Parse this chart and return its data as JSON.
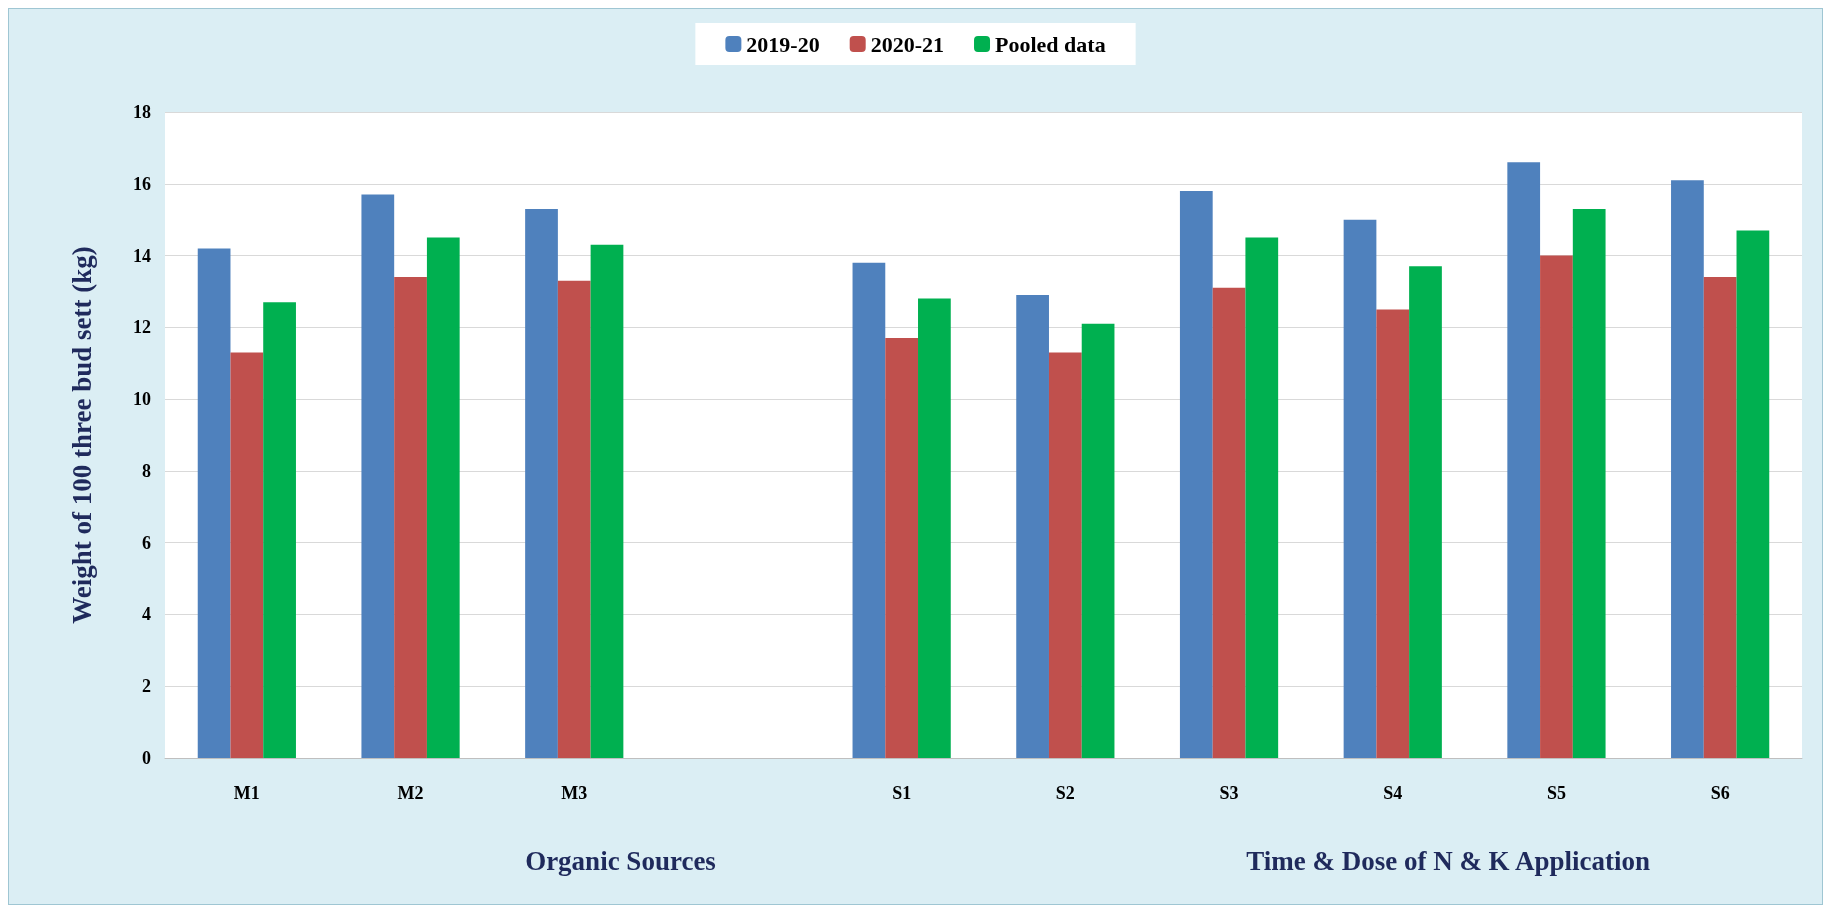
{
  "chart_data": {
    "type": "bar",
    "ylabel": "Weight of 100 three bud sett (kg)",
    "categories": [
      "M1",
      "M2",
      "M3",
      null,
      "S1",
      "S2",
      "S3",
      "S4",
      "S5",
      "S6"
    ],
    "series": [
      {
        "name": "2019-20",
        "color": "#4f81bd",
        "values": [
          14.2,
          15.7,
          15.3,
          null,
          13.8,
          12.9,
          15.8,
          15.0,
          16.6,
          16.1
        ]
      },
      {
        "name": "2020-21",
        "color": "#c0504d",
        "values": [
          11.3,
          13.4,
          13.3,
          null,
          11.7,
          11.3,
          13.1,
          12.5,
          14.0,
          13.4
        ]
      },
      {
        "name": "Pooled data",
        "color": "#00b050",
        "values": [
          12.7,
          14.5,
          14.3,
          null,
          12.8,
          12.1,
          14.5,
          13.7,
          15.3,
          14.7
        ]
      }
    ],
    "ylim": [
      0,
      18
    ],
    "yticks": [
      0,
      2,
      4,
      6,
      8,
      10,
      12,
      14,
      16,
      18
    ],
    "grid": "y",
    "legend": "top",
    "annotations": [
      "Organic Sources",
      "Time & Dose of N & K Application"
    ]
  }
}
